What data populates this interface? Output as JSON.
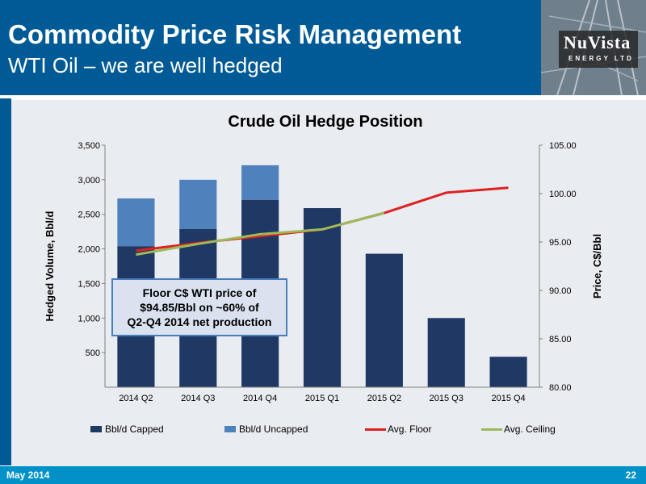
{
  "header": {
    "title": "Commodity Price Risk Management",
    "subtitle": "WTI Oil – we are well hedged"
  },
  "logo": {
    "wordmark": "NuVista",
    "tagline": "ENERGY LTD"
  },
  "footer": {
    "date": "May 2014",
    "page": "22"
  },
  "callout": {
    "lines": [
      "Floor C$ WTI price of",
      "$94.85/Bbl on ~60% of",
      "Q2-Q4 2014 net production"
    ]
  },
  "chart_data": {
    "type": "bar",
    "title": "Crude Oil Hedge Position",
    "categories": [
      "2014 Q2",
      "2014 Q3",
      "2014 Q4",
      "2015 Q1",
      "2015 Q2",
      "2015 Q3",
      "2015 Q4"
    ],
    "ylabel": "Hedged Volume, Bbl/d",
    "y2label": "Price, C$/Bbl",
    "ylim": [
      0,
      3500
    ],
    "y_ticks": [
      "500",
      "1,000",
      "1,500",
      "2,000",
      "2,500",
      "3,000",
      "3,500"
    ],
    "y2lim": [
      80,
      105
    ],
    "y2_ticks": [
      "80.00",
      "85.00",
      "90.00",
      "95.00",
      "100.00",
      "105.00"
    ],
    "stacked": true,
    "series": [
      {
        "name": "Bbl/d Capped",
        "kind": "bar",
        "axis": "left",
        "color": "#1f3864",
        "values": [
          2040,
          2290,
          2710,
          2590,
          1930,
          1000,
          440
        ]
      },
      {
        "name": "Bbl/d Uncapped",
        "kind": "bar",
        "axis": "left",
        "color": "#4f81bd",
        "values": [
          690,
          710,
          500,
          0,
          0,
          0,
          0
        ]
      },
      {
        "name": "Avg. Floor",
        "kind": "line",
        "axis": "right",
        "color": "#e02020",
        "values": [
          94.1,
          94.9,
          95.6,
          96.3,
          98.0,
          100.1,
          100.6
        ]
      },
      {
        "name": "Avg. Ceiling",
        "kind": "line",
        "axis": "right",
        "color": "#9bbb59",
        "values": [
          93.7,
          94.8,
          95.8,
          96.3,
          98.0,
          null,
          null
        ]
      }
    ],
    "grid": false,
    "legend": "bottom"
  }
}
